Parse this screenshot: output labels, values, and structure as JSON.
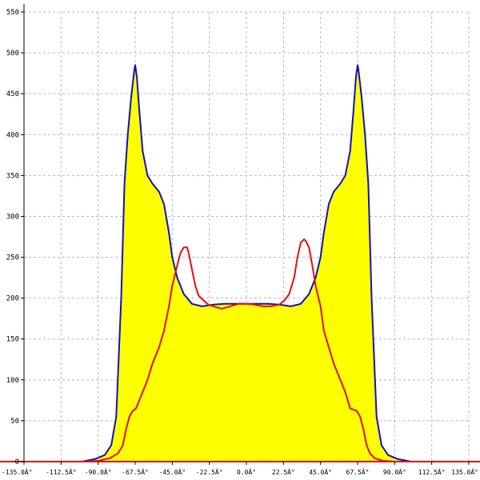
{
  "chart_data": {
    "type": "area",
    "title": "",
    "xlabel": "",
    "ylabel": "",
    "xlim": [
      -135,
      135
    ],
    "ylim": [
      0,
      550
    ],
    "grid": true,
    "x_ticks": [
      -135,
      -112.5,
      -90,
      -67.5,
      -45,
      -22.5,
      0,
      22.5,
      45,
      67.5,
      90,
      112.5,
      135
    ],
    "x_tick_labels": [
      "-135.0Â°",
      "-112.5Â°",
      "-90.0Â°",
      "-67.5Â°",
      "-45.0Â°",
      "-22.5Â°",
      "0.0Â°",
      "22.5Â°",
      "45.0Â°",
      "67.5Â°",
      "90.0Â°",
      "112.5Â°",
      "135.0Â°"
    ],
    "y_ticks": [
      0,
      50,
      100,
      150,
      200,
      250,
      300,
      350,
      400,
      450,
      500,
      550
    ],
    "y_tick_labels": [
      "0",
      "50",
      "100",
      "150",
      "200",
      "250",
      "300",
      "350",
      "400",
      "450",
      "500",
      "550"
    ],
    "series": [
      {
        "color": "#1010c0",
        "fill": "#ffff00",
        "x": [
          -135,
          -100,
          -92,
          -86,
          -82,
          -79,
          -76,
          -74,
          -72,
          -70,
          -68,
          -67.5,
          -66.5,
          -65,
          -63,
          -60,
          -57,
          -53,
          -50,
          -47,
          -45,
          -42,
          -38,
          -33,
          -27,
          -20,
          -13,
          -6,
          0,
          6,
          13,
          20,
          27,
          33,
          38,
          42,
          45,
          47,
          50,
          53,
          57,
          60,
          63,
          65,
          66.5,
          67.5,
          68,
          70,
          72,
          74,
          76,
          79,
          82,
          86,
          92,
          100,
          135
        ],
        "y": [
          0,
          0,
          3,
          8,
          20,
          55,
          200,
          340,
          400,
          445,
          480,
          485,
          470,
          430,
          380,
          350,
          340,
          330,
          315,
          280,
          250,
          225,
          205,
          193,
          190,
          192,
          193,
          193,
          193,
          193,
          193,
          192,
          190,
          193,
          205,
          225,
          250,
          280,
          315,
          330,
          340,
          350,
          380,
          430,
          470,
          485,
          480,
          445,
          400,
          340,
          200,
          55,
          20,
          8,
          3,
          0,
          0
        ]
      },
      {
        "color": "#e01010",
        "x": [
          -135,
          -100,
          -90,
          -83,
          -78,
          -75,
          -73,
          -71,
          -69,
          -67,
          -63,
          -60,
          -57,
          -53,
          -50,
          -47,
          -45,
          -42,
          -40,
          -38,
          -36,
          -35,
          -33,
          -31,
          -29,
          -26,
          -23,
          -20,
          -15,
          -10,
          -5,
          0,
          5,
          10,
          15,
          20,
          23,
          26,
          29,
          31,
          33,
          35,
          36,
          38,
          40,
          42,
          45,
          47,
          50,
          53,
          57,
          60,
          63,
          67,
          69,
          71,
          73,
          75,
          78,
          83,
          90,
          100,
          135
        ],
        "y": [
          0,
          0,
          1,
          4,
          10,
          20,
          40,
          55,
          62,
          65,
          85,
          100,
          120,
          140,
          160,
          190,
          215,
          240,
          255,
          262,
          262,
          255,
          235,
          215,
          203,
          197,
          192,
          190,
          187,
          190,
          193,
          193,
          192,
          190,
          190,
          192,
          197,
          205,
          225,
          250,
          268,
          272,
          270,
          262,
          240,
          215,
          190,
          160,
          140,
          120,
          100,
          85,
          65,
          62,
          55,
          40,
          20,
          10,
          4,
          1,
          0,
          0,
          0
        ]
      }
    ]
  }
}
